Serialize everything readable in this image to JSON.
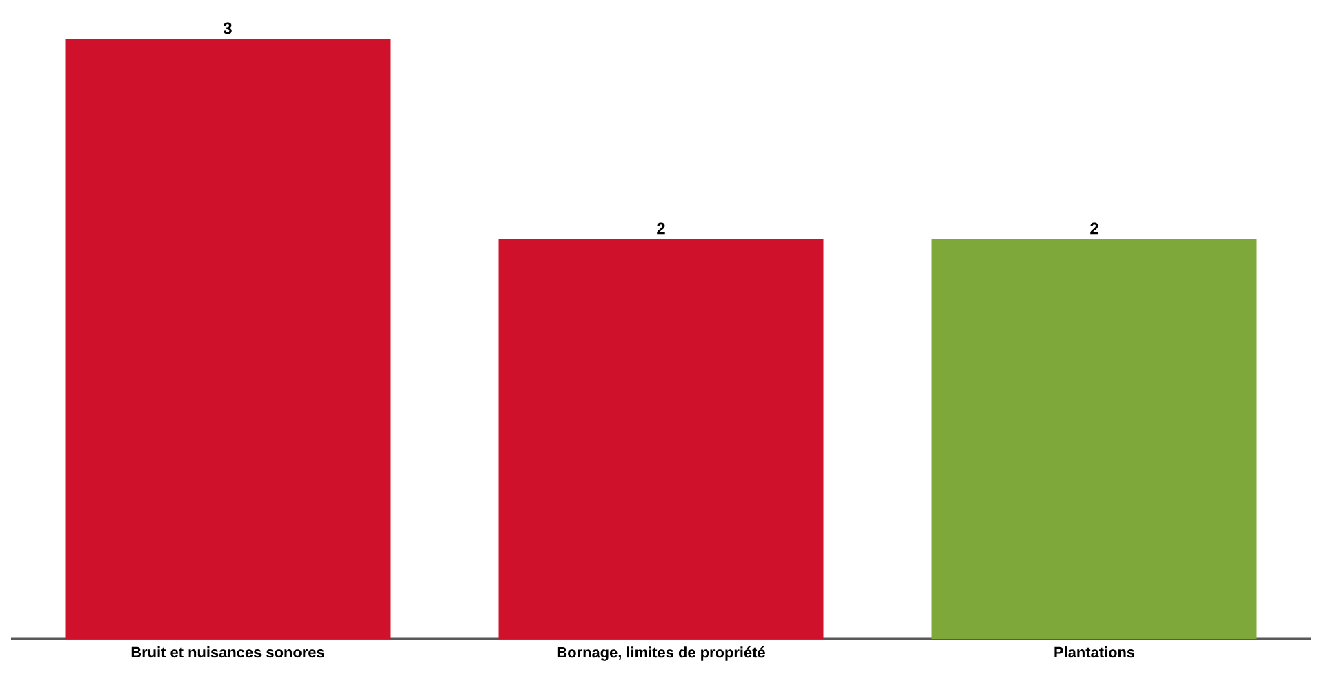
{
  "chart_data": {
    "type": "bar",
    "categories": [
      "Bruit et nuisances sonores",
      "Bornage, limites de propriété",
      "Plantations"
    ],
    "values": [
      3,
      2,
      2
    ],
    "colors": [
      "#d0112b",
      "#d0112b",
      "#7fa83a"
    ],
    "data_labels": true
  }
}
